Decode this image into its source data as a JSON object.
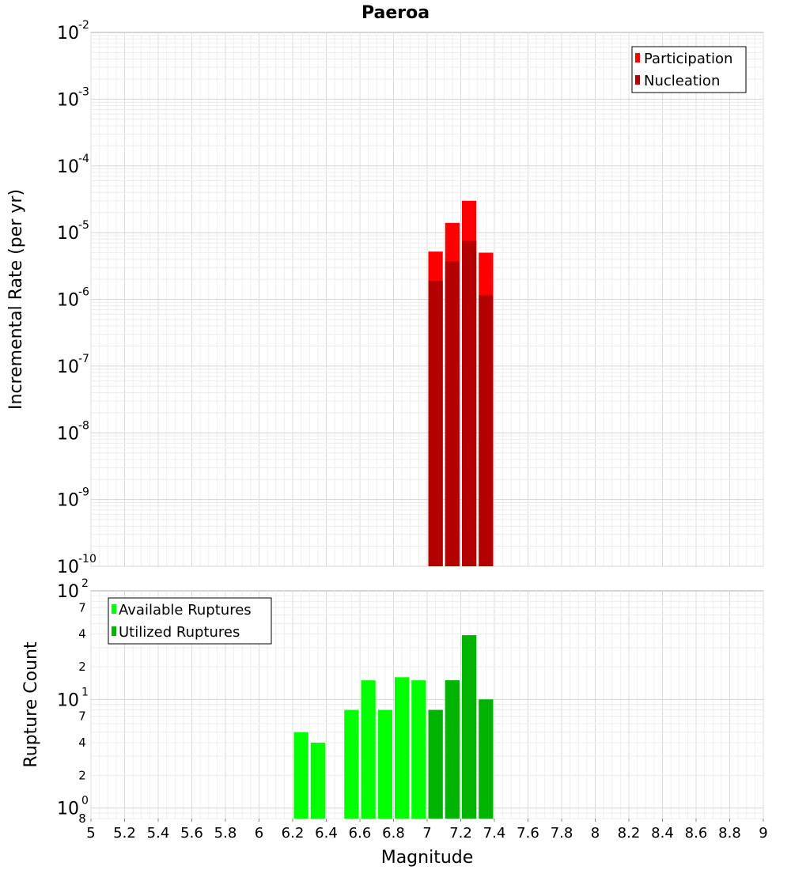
{
  "chart_data": [
    {
      "type": "bar",
      "title": "Paeroa",
      "xlabel": "",
      "ylabel": "Incremental Rate (per yr)",
      "yscale": "log",
      "ylim": [
        1e-10,
        0.01
      ],
      "xlim": [
        5,
        9
      ],
      "y_tick_labels": [
        {
          "base": "10",
          "exp": "-10",
          "value": 1e-10
        },
        {
          "base": "10",
          "exp": "-9",
          "value": 1e-09
        },
        {
          "base": "10",
          "exp": "-8",
          "value": 1e-08
        },
        {
          "base": "10",
          "exp": "-7",
          "value": 1e-07
        },
        {
          "base": "10",
          "exp": "-6",
          "value": 1e-06
        },
        {
          "base": "10",
          "exp": "-5",
          "value": 1e-05
        },
        {
          "base": "10",
          "exp": "-4",
          "value": 0.0001
        },
        {
          "base": "10",
          "exp": "-3",
          "value": 0.001
        },
        {
          "base": "10",
          "exp": "-2",
          "value": 0.01
        }
      ],
      "bin_width": 0.1,
      "series": [
        {
          "name": "Participation",
          "color": "#ff0000",
          "x": [
            7.05,
            7.15,
            7.25,
            7.35
          ],
          "values": [
            5.2e-06,
            1.4e-05,
            3e-05,
            5e-06
          ]
        },
        {
          "name": "Nucleation",
          "color": "#b30000",
          "x": [
            7.05,
            7.15,
            7.25,
            7.35
          ],
          "values": [
            1.9e-06,
            3.7e-06,
            7.5e-06,
            1.15e-06
          ]
        }
      ],
      "legend": [
        "Participation",
        "Nucleation"
      ],
      "legend_position": "top-right",
      "grid": true
    },
    {
      "type": "bar",
      "title": "",
      "xlabel": "Magnitude",
      "ylabel": "Rupture Count",
      "yscale": "log",
      "ylim": [
        0.8,
        100
      ],
      "xlim": [
        5,
        9
      ],
      "x_tick_labels": [
        "5",
        "5.2",
        "5.4",
        "5.6",
        "5.8",
        "6",
        "6.2",
        "6.4",
        "6.6",
        "6.8",
        "7",
        "7.2",
        "7.4",
        "7.6",
        "7.8",
        "8",
        "8.2",
        "8.4",
        "8.6",
        "8.8",
        "9"
      ],
      "x_tick_values": [
        5,
        5.2,
        5.4,
        5.6,
        5.8,
        6,
        6.2,
        6.4,
        6.6,
        6.8,
        7,
        7.2,
        7.4,
        7.6,
        7.8,
        8,
        8.2,
        8.4,
        8.6,
        8.8,
        9
      ],
      "y_major_labels": [
        {
          "base": "10",
          "exp": "0",
          "value": 1
        },
        {
          "base": "10",
          "exp": "1",
          "value": 10
        },
        {
          "base": "10",
          "exp": "2",
          "value": 100
        }
      ],
      "y_minor_labels": [
        {
          "label": "8",
          "value": 0.8
        },
        {
          "label": "2",
          "value": 2
        },
        {
          "label": "4",
          "value": 4
        },
        {
          "label": "7",
          "value": 7
        },
        {
          "label": "2",
          "value": 20
        },
        {
          "label": "4",
          "value": 40
        },
        {
          "label": "7",
          "value": 70
        }
      ],
      "bin_width": 0.1,
      "series": [
        {
          "name": "Available Ruptures",
          "color": "#00ff00",
          "x": [
            6.25,
            6.35,
            6.55,
            6.65,
            6.75,
            6.85,
            6.95,
            7.05,
            7.15,
            7.25,
            7.35
          ],
          "values": [
            5,
            4,
            8,
            15,
            8,
            16,
            15,
            8,
            15,
            39,
            10
          ]
        },
        {
          "name": "Utilized Ruptures",
          "color": "#00b300",
          "x": [
            7.05,
            7.15,
            7.25,
            7.35
          ],
          "values": [
            8,
            15,
            39,
            10
          ]
        }
      ],
      "legend": [
        "Available Ruptures",
        "Utilized Ruptures"
      ],
      "legend_position": "top-left",
      "grid": true
    }
  ]
}
